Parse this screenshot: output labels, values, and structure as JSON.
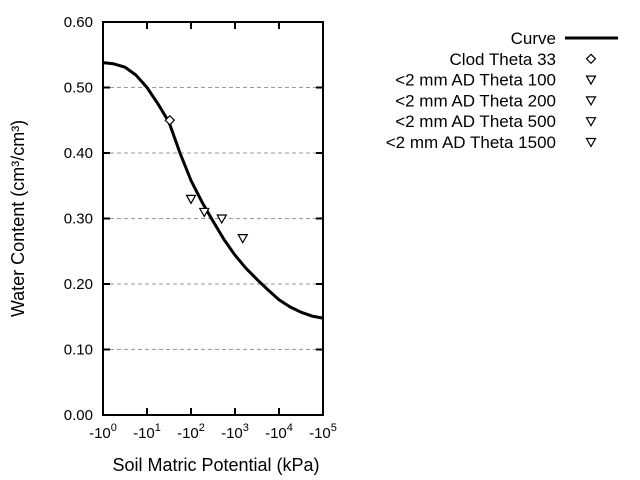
{
  "figure": {
    "background": "#ffffff",
    "line_color": "#000000",
    "grid_color": "#9a9a9a"
  },
  "chart_data": {
    "type": "line",
    "title": "",
    "xlabel": "Soil Matric Potential (kPa)",
    "ylabel": "Water Content (cm³/cm³)",
    "x_axis": {
      "scale": "log10 of negative kPa",
      "range_log": [
        0,
        5
      ],
      "ticks": [
        {
          "base": "-10",
          "exp": "0",
          "log": 0
        },
        {
          "base": "-10",
          "exp": "1",
          "log": 1
        },
        {
          "base": "-10",
          "exp": "2",
          "log": 2
        },
        {
          "base": "-10",
          "exp": "3",
          "log": 3
        },
        {
          "base": "-10",
          "exp": "4",
          "log": 4
        },
        {
          "base": "-10",
          "exp": "5",
          "log": 5
        }
      ]
    },
    "y_axis": {
      "range": [
        0.0,
        0.6
      ],
      "ticks": [
        {
          "label": "0.00",
          "value": 0.0
        },
        {
          "label": "0.10",
          "value": 0.1
        },
        {
          "label": "0.20",
          "value": 0.2
        },
        {
          "label": "0.30",
          "value": 0.3
        },
        {
          "label": "0.40",
          "value": 0.4
        },
        {
          "label": "0.50",
          "value": 0.5
        },
        {
          "label": "0.60",
          "value": 0.6
        }
      ],
      "grid_values": [
        0.1,
        0.2,
        0.3,
        0.4,
        0.5
      ],
      "grid_style": "dashed"
    },
    "legend": {
      "position": "outside-top-right"
    },
    "series": [
      {
        "name": "Curve",
        "kind": "line",
        "points_log_theta": [
          [
            0.0,
            0.538
          ],
          [
            0.25,
            0.536
          ],
          [
            0.5,
            0.531
          ],
          [
            0.75,
            0.519
          ],
          [
            1.0,
            0.5
          ],
          [
            1.25,
            0.475
          ],
          [
            1.5,
            0.447
          ],
          [
            1.75,
            0.4
          ],
          [
            2.0,
            0.358
          ],
          [
            2.25,
            0.325
          ],
          [
            2.5,
            0.296
          ],
          [
            2.75,
            0.268
          ],
          [
            3.0,
            0.244
          ],
          [
            3.25,
            0.224
          ],
          [
            3.5,
            0.207
          ],
          [
            3.75,
            0.191
          ],
          [
            4.0,
            0.176
          ],
          [
            4.25,
            0.165
          ],
          [
            4.5,
            0.157
          ],
          [
            4.75,
            0.151
          ],
          [
            5.0,
            0.148
          ]
        ]
      },
      {
        "name": "Clod Theta 33",
        "kind": "scatter",
        "marker": "diamond",
        "points": [
          {
            "kpa": -33,
            "theta": 0.45
          }
        ]
      },
      {
        "name": "<2 mm AD Theta 100",
        "kind": "scatter",
        "marker": "triangle-down",
        "points": [
          {
            "kpa": -100,
            "theta": 0.33
          }
        ]
      },
      {
        "name": "<2 mm AD Theta 200",
        "kind": "scatter",
        "marker": "triangle-down",
        "points": [
          {
            "kpa": -200,
            "theta": 0.31
          }
        ]
      },
      {
        "name": "<2 mm AD Theta 500",
        "kind": "scatter",
        "marker": "triangle-down",
        "points": [
          {
            "kpa": -500,
            "theta": 0.3
          }
        ]
      },
      {
        "name": "<2 mm AD Theta 1500",
        "kind": "scatter",
        "marker": "triangle-down",
        "points": [
          {
            "kpa": -1500,
            "theta": 0.27
          }
        ]
      }
    ]
  }
}
